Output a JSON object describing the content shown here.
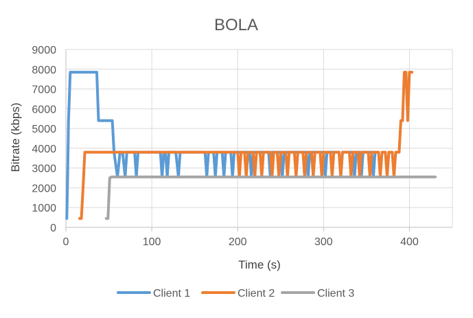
{
  "chart_data": {
    "type": "line",
    "title": "BOLA",
    "xlabel": "Time (s)",
    "ylabel": "Bitrate (kbps)",
    "xlim": [
      0,
      450
    ],
    "ylim": [
      0,
      9000
    ],
    "x_ticks": [
      0,
      100,
      200,
      300,
      400
    ],
    "y_ticks": [
      0,
      1000,
      2000,
      3000,
      4000,
      5000,
      6000,
      7000,
      8000,
      9000
    ],
    "grid": true,
    "legend_position": "bottom",
    "series": [
      {
        "name": "Client 1",
        "color": "#5B9BD5",
        "points": [
          [
            1,
            450
          ],
          [
            2,
            2500
          ],
          [
            3,
            5400
          ],
          [
            5,
            7850
          ],
          [
            36,
            7850
          ],
          [
            38,
            5400
          ],
          [
            54,
            5400
          ],
          [
            56,
            3800
          ],
          [
            60,
            2550
          ],
          [
            63,
            3800
          ],
          [
            66,
            3800
          ],
          [
            69,
            2550
          ],
          [
            71,
            3800
          ],
          [
            80,
            3800
          ],
          [
            82,
            2550
          ],
          [
            84,
            3800
          ],
          [
            110,
            3800
          ],
          [
            112,
            2550
          ],
          [
            114,
            3800
          ],
          [
            116,
            3800
          ],
          [
            118,
            2550
          ],
          [
            120,
            3800
          ],
          [
            128,
            3800
          ],
          [
            131,
            2550
          ],
          [
            133,
            3800
          ],
          [
            162,
            3800
          ],
          [
            164,
            2550
          ],
          [
            166,
            3800
          ],
          [
            172,
            3800
          ],
          [
            174,
            2550
          ],
          [
            176,
            3800
          ],
          [
            182,
            3800
          ],
          [
            184,
            2550
          ],
          [
            186,
            3800
          ],
          [
            192,
            3800
          ],
          [
            194,
            2550
          ],
          [
            196,
            3800
          ],
          [
            214,
            3800
          ],
          [
            216,
            2550
          ],
          [
            218,
            3800
          ],
          [
            236,
            3800
          ],
          [
            238,
            2550
          ],
          [
            240,
            3800
          ],
          [
            250,
            3800
          ],
          [
            252,
            2550
          ],
          [
            254,
            3800
          ],
          [
            280,
            3800
          ],
          [
            282,
            2550
          ],
          [
            284,
            3800
          ],
          [
            300,
            3800
          ],
          [
            302,
            2550
          ],
          [
            304,
            3800
          ],
          [
            318,
            3800
          ],
          [
            320,
            2550
          ],
          [
            322,
            3800
          ],
          [
            334,
            3800
          ],
          [
            336,
            2550
          ],
          [
            338,
            3800
          ],
          [
            342,
            3800
          ],
          [
            344,
            2550
          ],
          [
            346,
            3800
          ],
          [
            356,
            3800
          ],
          [
            358,
            2550
          ],
          [
            360,
            3800
          ],
          [
            362,
            3800
          ]
        ]
      },
      {
        "name": "Client 2",
        "color": "#ED7D31",
        "points": [
          [
            16,
            450
          ],
          [
            18,
            450
          ],
          [
            20,
            2000
          ],
          [
            22,
            3800
          ],
          [
            200,
            3800
          ],
          [
            202,
            2550
          ],
          [
            204,
            3800
          ],
          [
            208,
            3800
          ],
          [
            210,
            2550
          ],
          [
            212,
            3800
          ],
          [
            218,
            3800
          ],
          [
            220,
            2550
          ],
          [
            222,
            3800
          ],
          [
            226,
            3800
          ],
          [
            228,
            2550
          ],
          [
            230,
            3800
          ],
          [
            238,
            3800
          ],
          [
            240,
            2550
          ],
          [
            242,
            3800
          ],
          [
            246,
            3800
          ],
          [
            248,
            2550
          ],
          [
            250,
            3800
          ],
          [
            256,
            3800
          ],
          [
            258,
            2550
          ],
          [
            260,
            3800
          ],
          [
            266,
            3800
          ],
          [
            268,
            2550
          ],
          [
            270,
            3800
          ],
          [
            276,
            3800
          ],
          [
            278,
            2550
          ],
          [
            280,
            3800
          ],
          [
            286,
            3800
          ],
          [
            288,
            2550
          ],
          [
            290,
            3800
          ],
          [
            296,
            3800
          ],
          [
            298,
            2550
          ],
          [
            300,
            3800
          ],
          [
            308,
            3800
          ],
          [
            310,
            2550
          ],
          [
            312,
            3800
          ],
          [
            318,
            3800
          ],
          [
            320,
            2550
          ],
          [
            322,
            3800
          ],
          [
            330,
            3800
          ],
          [
            332,
            2550
          ],
          [
            334,
            3800
          ],
          [
            340,
            3800
          ],
          [
            342,
            2550
          ],
          [
            344,
            3800
          ],
          [
            352,
            3800
          ],
          [
            354,
            2550
          ],
          [
            356,
            3800
          ],
          [
            364,
            3800
          ],
          [
            366,
            2550
          ],
          [
            368,
            3800
          ],
          [
            372,
            3800
          ],
          [
            374,
            2550
          ],
          [
            376,
            3800
          ],
          [
            380,
            3800
          ],
          [
            382,
            2550
          ],
          [
            384,
            3800
          ],
          [
            388,
            3800
          ],
          [
            390,
            5400
          ],
          [
            392,
            5400
          ],
          [
            394,
            7850
          ],
          [
            396,
            7850
          ],
          [
            398,
            5400
          ],
          [
            400,
            7850
          ],
          [
            403,
            7850
          ]
        ]
      },
      {
        "name": "Client 3",
        "color": "#A5A5A5",
        "points": [
          [
            47,
            450
          ],
          [
            49,
            450
          ],
          [
            51,
            2500
          ],
          [
            53,
            2550
          ],
          [
            430,
            2550
          ]
        ]
      }
    ]
  }
}
